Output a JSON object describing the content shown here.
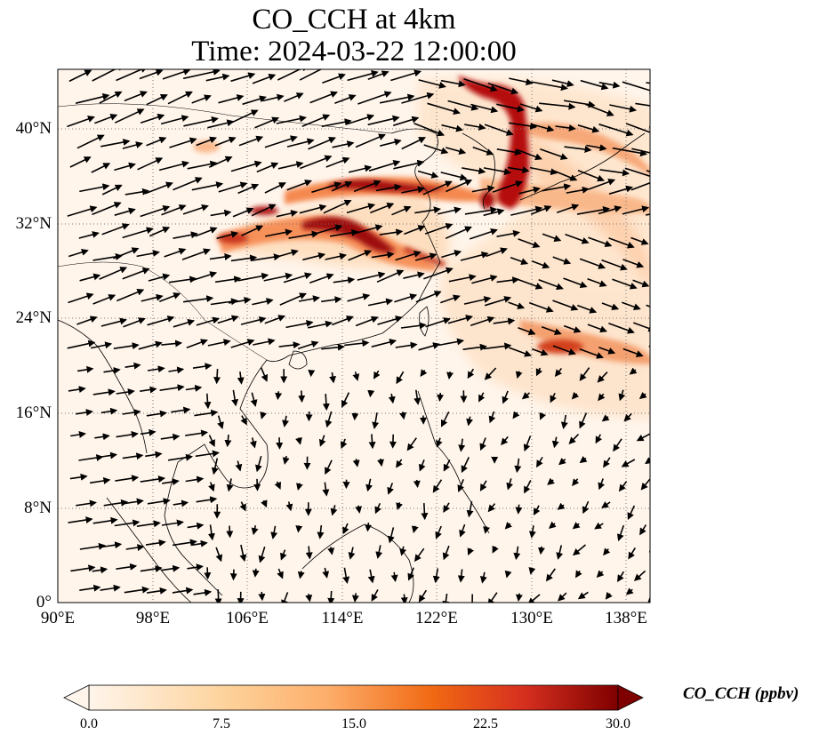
{
  "title": {
    "line1": "CO_CCH at 4km",
    "line2": "Time: 2024-03-22 12:00:00"
  },
  "map": {
    "extent": {
      "lon_min": 90,
      "lon_max": 140,
      "lat_min": 0,
      "lat_max": 45
    },
    "gridlines": "dotted",
    "lat_labels": [
      "40°N",
      "32°N",
      "24°N",
      "16°N",
      "8°N",
      "0°"
    ],
    "lon_labels": [
      "90°E",
      "98°E",
      "106°E",
      "114°E",
      "122°E",
      "130°E",
      "138°E"
    ]
  },
  "colorbar": {
    "label": "CO_CCH (ppbv)",
    "ticks": [
      "0.0",
      "7.5",
      "15.0",
      "22.5",
      "30.0"
    ],
    "range": [
      0,
      30
    ],
    "extend": "both",
    "colors": [
      "#fff5eb",
      "#fdd49e",
      "#fdae6b",
      "#f16913",
      "#d7301f",
      "#7f0000"
    ]
  }
}
